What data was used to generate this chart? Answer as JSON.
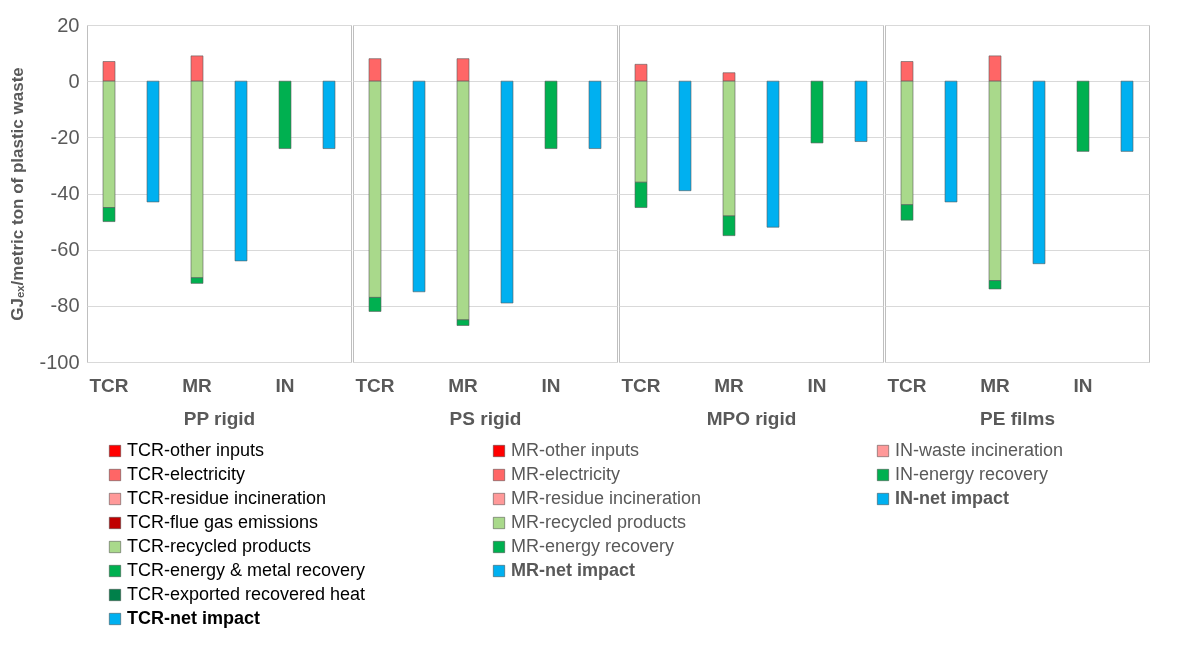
{
  "chart_data": [
    {
      "type": "bar",
      "stacked": true,
      "xlabel": "PP rigid",
      "ylabel": "GJₑₓ/metric ton of plastic waste",
      "categories": [
        "TCR",
        null,
        "MR",
        null,
        "IN",
        null
      ],
      "ylim": [
        -100,
        20
      ],
      "yticks": [
        -100,
        -80,
        -60,
        -40,
        -20,
        0,
        20
      ],
      "grid": "y",
      "legend": "bottom",
      "series": [
        {
          "name": "TCR-other inputs",
          "color": "#ff0000",
          "values": [
            null,
            null,
            null,
            null,
            null,
            null
          ]
        },
        {
          "name": "TCR-electricity",
          "color": "#ff6666",
          "values": [
            7,
            null,
            null,
            null,
            null,
            null
          ]
        },
        {
          "name": "TCR-residue incineration",
          "color": "#ff9999",
          "values": [
            null,
            null,
            null,
            null,
            null,
            null
          ]
        },
        {
          "name": "TCR-flue gas emissions",
          "color": "#c00000",
          "values": [
            null,
            null,
            null,
            null,
            null,
            null
          ]
        },
        {
          "name": "TCR-recycled products",
          "color": "#a9d98b",
          "values": [
            -45,
            null,
            null,
            null,
            null,
            null
          ]
        },
        {
          "name": "TCR-energy & metal recovery",
          "color": "#00b050",
          "values": [
            -5,
            null,
            null,
            null,
            null,
            null
          ]
        },
        {
          "name": "TCR-exported recovered heat",
          "color": "#00804a",
          "values": [
            null,
            null,
            null,
            null,
            null,
            null
          ]
        },
        {
          "name": "TCR-net impact",
          "color": "#00b0f0",
          "values": [
            null,
            -43,
            null,
            null,
            null,
            null
          ]
        },
        {
          "name": "MR-other inputs",
          "color": "#ff0000",
          "values": [
            null,
            null,
            null,
            null,
            null,
            null
          ]
        },
        {
          "name": "MR-electricity",
          "color": "#ff6666",
          "values": [
            null,
            null,
            9,
            null,
            null,
            null
          ]
        },
        {
          "name": "MR-residue incineration",
          "color": "#ff9999",
          "values": [
            null,
            null,
            null,
            null,
            null,
            null
          ]
        },
        {
          "name": "MR-recycled products",
          "color": "#a9d98b",
          "values": [
            null,
            null,
            -70,
            null,
            null,
            null
          ]
        },
        {
          "name": "MR-energy recovery",
          "color": "#00b050",
          "values": [
            null,
            null,
            -2,
            null,
            null,
            null
          ]
        },
        {
          "name": "MR-net impact",
          "color": "#00b0f0",
          "values": [
            null,
            null,
            null,
            -64,
            null,
            null
          ]
        },
        {
          "name": "IN-waste incineration",
          "color": "#ff9999",
          "values": [
            null,
            null,
            null,
            null,
            null,
            null
          ]
        },
        {
          "name": "IN-energy recovery",
          "color": "#00b050",
          "values": [
            null,
            null,
            null,
            null,
            -24,
            null
          ]
        },
        {
          "name": "IN-net impact",
          "color": "#00b0f0",
          "values": [
            null,
            null,
            null,
            null,
            null,
            -24
          ]
        }
      ]
    },
    {
      "type": "bar",
      "stacked": true,
      "xlabel": "PS rigid",
      "categories": [
        "TCR",
        null,
        "MR",
        null,
        "IN",
        null
      ],
      "ylim": [
        -100,
        20
      ],
      "yticks": [
        -100,
        -80,
        -60,
        -40,
        -20,
        0,
        20
      ],
      "grid": "y",
      "tick_labels": "x",
      "series": [
        {
          "color": "#ff6666",
          "values": [
            8,
            null,
            8,
            null,
            null,
            null
          ]
        },
        {
          "color": "#a9d98b",
          "values": [
            -77,
            null,
            -85,
            null,
            null,
            null
          ]
        },
        {
          "color": "#00b050",
          "values": [
            -5,
            null,
            -2,
            null,
            -24,
            null
          ]
        },
        {
          "color": "#00b0f0",
          "values": [
            null,
            -75,
            null,
            -79,
            null,
            -24
          ]
        }
      ]
    },
    {
      "type": "bar",
      "stacked": true,
      "xlabel": "MPO rigid",
      "categories": [
        "TCR",
        null,
        "MR",
        null,
        "IN",
        null
      ],
      "ylim": [
        -100,
        20
      ],
      "yticks": [
        -100,
        -80,
        -60,
        -40,
        -20,
        0,
        20
      ],
      "grid": "y",
      "tick_labels": "x",
      "series": [
        {
          "color": "#ff6666",
          "values": [
            6,
            null,
            3,
            null,
            null,
            null
          ]
        },
        {
          "color": "#a9d98b",
          "values": [
            -36,
            null,
            -48,
            null,
            null,
            null
          ]
        },
        {
          "color": "#00b050",
          "values": [
            -9,
            null,
            -7,
            null,
            -22,
            null
          ]
        },
        {
          "color": "#00b0f0",
          "values": [
            null,
            -39,
            null,
            -52,
            null,
            -21.5
          ]
        }
      ]
    },
    {
      "type": "bar",
      "stacked": true,
      "xlabel": "PE films",
      "categories": [
        "TCR",
        null,
        "MR",
        null,
        "IN",
        null
      ],
      "ylim": [
        -100,
        20
      ],
      "yticks": [
        -100,
        -80,
        -60,
        -40,
        -20,
        0,
        20
      ],
      "grid": "y",
      "tick_labels": "x",
      "series": [
        {
          "color": "#ff6666",
          "values": [
            7,
            null,
            9,
            null,
            null,
            null
          ]
        },
        {
          "color": "#a9d98b",
          "values": [
            -44,
            null,
            -71,
            null,
            null,
            null
          ]
        },
        {
          "color": "#00b050",
          "values": [
            -5.5,
            null,
            -3,
            null,
            -25,
            null
          ]
        },
        {
          "color": "#00b0f0",
          "values": [
            null,
            -43,
            null,
            -65,
            null,
            -25
          ]
        }
      ]
    }
  ]
}
